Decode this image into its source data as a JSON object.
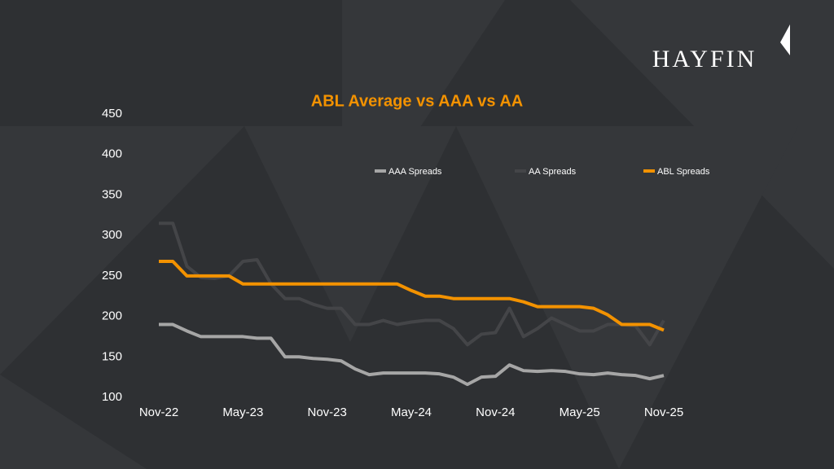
{
  "logo": "HAYFIN",
  "chart_data": {
    "type": "line",
    "title": "ABL Average vs AAA vs AA",
    "categories": [
      "Nov-22",
      null,
      null,
      null,
      null,
      null,
      "May-23",
      null,
      null,
      null,
      null,
      null,
      "Nov-23",
      null,
      null,
      null,
      null,
      null,
      "May-24",
      null,
      null,
      null,
      null,
      null,
      "Nov-24",
      null,
      null,
      null,
      null,
      null,
      "May-25",
      null,
      null,
      null,
      null,
      null,
      "Nov-25"
    ],
    "series": [
      {
        "name": "AAA Spreads",
        "color": "#a6a6a6",
        "values": [
          190,
          190,
          182,
          175,
          175,
          175,
          175,
          173,
          173,
          150,
          150,
          148,
          147,
          145,
          135,
          128,
          130,
          130,
          130,
          130,
          129,
          125,
          116,
          125,
          126,
          140,
          133,
          132,
          133,
          132,
          129,
          128,
          130,
          128,
          127,
          123,
          127
        ]
      },
      {
        "name": "AA Spreads",
        "color": "#444548",
        "values": [
          315,
          315,
          262,
          248,
          247,
          250,
          268,
          270,
          240,
          222,
          222,
          215,
          210,
          210,
          190,
          190,
          195,
          190,
          193,
          195,
          195,
          185,
          165,
          178,
          180,
          210,
          175,
          185,
          198,
          190,
          182,
          182,
          190,
          190,
          188,
          165,
          195
        ]
      },
      {
        "name": "ABL Spreads",
        "color": "#f39200",
        "values": [
          268,
          268,
          250,
          250,
          250,
          250,
          240,
          240,
          240,
          240,
          240,
          240,
          240,
          240,
          240,
          240,
          240,
          240,
          232,
          225,
          225,
          222,
          222,
          222,
          222,
          222,
          218,
          212,
          212,
          212,
          212,
          210,
          202,
          190,
          190,
          190,
          183
        ]
      }
    ],
    "ylim": [
      100,
      450
    ],
    "yticks": [
      100,
      150,
      200,
      250,
      300,
      350,
      400,
      450
    ],
    "grid": false,
    "legend": "top"
  }
}
